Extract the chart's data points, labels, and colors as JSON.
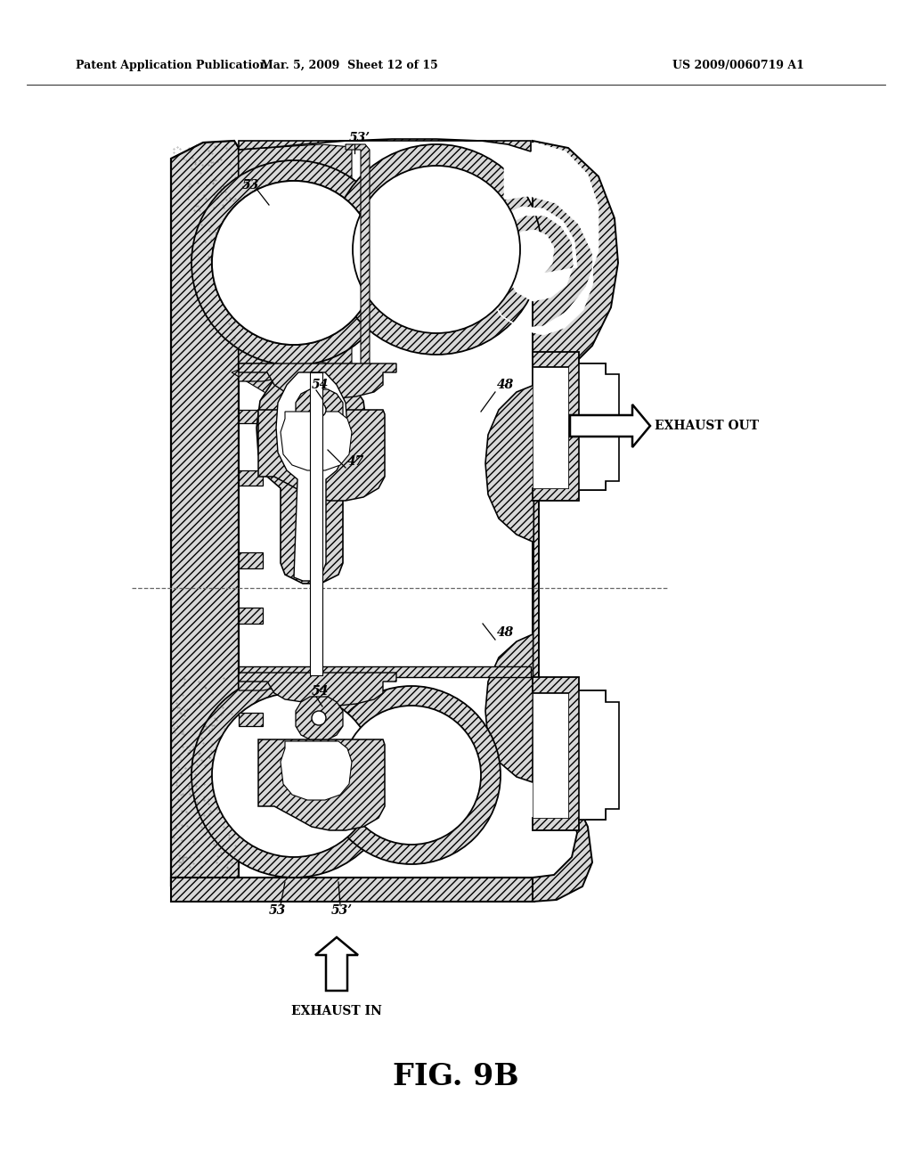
{
  "bg_color": "#ffffff",
  "header_left": "Patent Application Publication",
  "header_mid": "Mar. 5, 2009  Sheet 12 of 15",
  "header_right": "US 2009/0060719 A1",
  "fig_label": "FIG. 9B",
  "exhaust_out_label": "EXHAUST OUT",
  "exhaust_in_label": "EXHAUST IN",
  "label_53_top": "53",
  "label_53prime_top": "53’",
  "label_54_upper": "54",
  "label_47": "47",
  "label_48_upper": "48",
  "label_48_lower": "48",
  "label_54_lower": "54",
  "label_53_bottom": "53",
  "label_53prime_bottom": "53’",
  "hatch": "////",
  "metal_fc": "#d8d8d8",
  "white": "#ffffff",
  "black": "#000000"
}
